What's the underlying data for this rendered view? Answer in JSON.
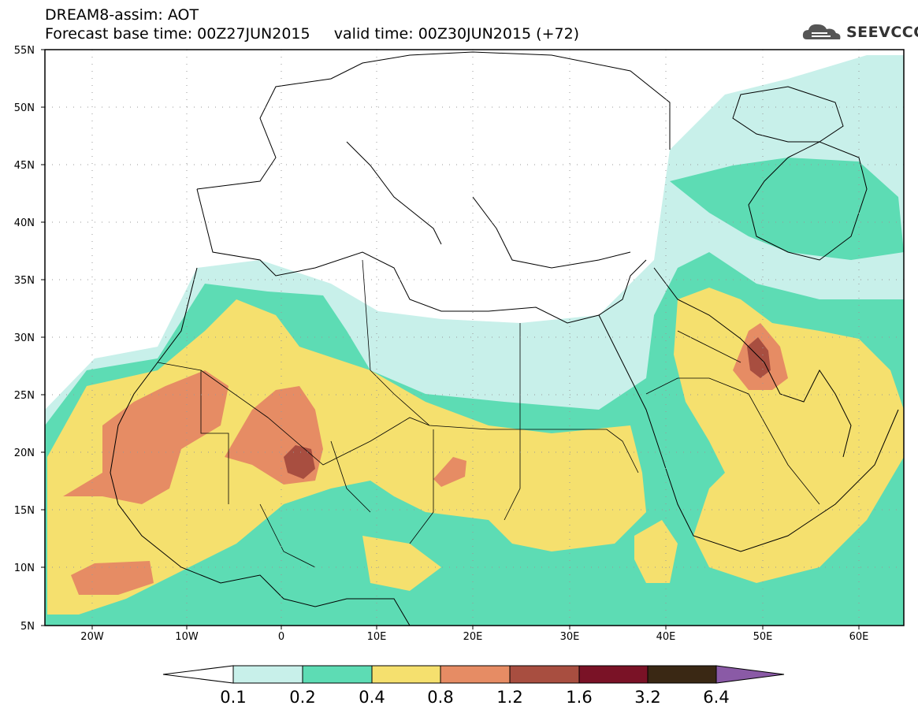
{
  "title": {
    "line1": "DREAM8-assim: AOT",
    "line2": "Forecast base time: 00Z27JUN2015     valid time: 00Z30JUN2015 (+72)"
  },
  "logo": {
    "text": "SEEVCCC",
    "icon": "cloud-logo-icon"
  },
  "map": {
    "lat_labels": [
      "55N",
      "50N",
      "45N",
      "40N",
      "35N",
      "30N",
      "25N",
      "20N",
      "15N",
      "10N",
      "5N"
    ],
    "lon_labels": [
      "20W",
      "10W",
      "0",
      "10E",
      "20E",
      "30E",
      "40E",
      "50E",
      "60E"
    ]
  },
  "colorbar": {
    "labels": [
      "0.1",
      "0.2",
      "0.4",
      "0.8",
      "1.2",
      "1.6",
      "3.2",
      "6.4"
    ],
    "colors": [
      "#c8f0ea",
      "#5ddcb4",
      "#f5e06e",
      "#e68c64",
      "#a84e40",
      "#7a1226",
      "#3a2814",
      "#8a5aa6"
    ]
  },
  "colors": {
    "aot_0_1": "#c8f0ea",
    "aot_0_2": "#5ddcb4",
    "aot_0_4": "#f5e06e",
    "aot_0_8": "#e68c64",
    "aot_1_2": "#a84e40"
  }
}
